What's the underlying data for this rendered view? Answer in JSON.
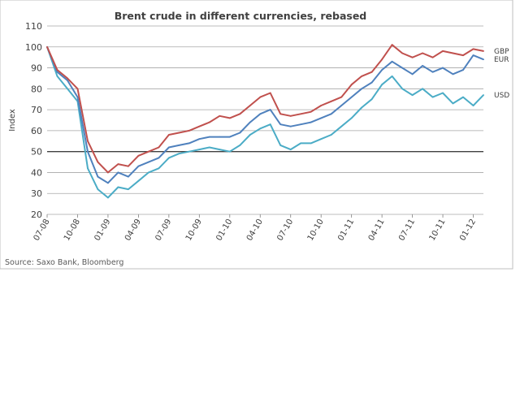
{
  "chart_data": {
    "type": "line",
    "title": "Brent crude in different currencies, rebased",
    "ylabel": "Index",
    "xlabel": "",
    "source": "Source: Saxo Bank, Bloomberg",
    "ylim": [
      20,
      110
    ],
    "yticks": [
      20,
      30,
      40,
      50,
      60,
      70,
      80,
      90,
      100,
      110
    ],
    "reference_line": 50,
    "xlim": [
      0,
      43
    ],
    "x_tick_labels": [
      "07-08",
      "10-08",
      "01-09",
      "04-09",
      "07-09",
      "10-09",
      "01-10",
      "04-10",
      "07-10",
      "10-10",
      "01-11",
      "04-11",
      "07-11",
      "10-11",
      "01-12"
    ],
    "x_tick_positions": [
      0,
      3,
      6,
      9,
      12,
      15,
      18,
      21,
      24,
      27,
      30,
      33,
      36,
      39,
      42
    ],
    "x": [
      0,
      1,
      2,
      3,
      4,
      5,
      6,
      7,
      8,
      9,
      10,
      11,
      12,
      13,
      14,
      15,
      16,
      17,
      18,
      19,
      20,
      21,
      22,
      23,
      24,
      25,
      26,
      27,
      28,
      29,
      30,
      31,
      32,
      33,
      34,
      35,
      36,
      37,
      38,
      39,
      40,
      41,
      42,
      43
    ],
    "series": [
      {
        "name": "GBP",
        "color": "#c0504d",
        "values": [
          100,
          89,
          85,
          80,
          55,
          45,
          40,
          44,
          43,
          48,
          50,
          52,
          58,
          59,
          60,
          62,
          64,
          67,
          66,
          68,
          72,
          76,
          78,
          68,
          67,
          68,
          69,
          72,
          74,
          76,
          82,
          86,
          88,
          94,
          101,
          97,
          95,
          97,
          95,
          98,
          97,
          96,
          99,
          98
        ]
      },
      {
        "name": "EUR",
        "color": "#4f81bd",
        "values": [
          100,
          88,
          84,
          76,
          50,
          38,
          35,
          40,
          38,
          43,
          45,
          47,
          52,
          53,
          54,
          56,
          57,
          57,
          57,
          59,
          64,
          68,
          70,
          63,
          62,
          63,
          64,
          66,
          68,
          72,
          76,
          80,
          83,
          89,
          93,
          90,
          87,
          91,
          88,
          90,
          87,
          89,
          96,
          94
        ]
      },
      {
        "name": "USD",
        "color": "#4bacc6",
        "values": [
          100,
          86,
          80,
          74,
          42,
          32,
          28,
          33,
          32,
          36,
          40,
          42,
          47,
          49,
          50,
          51,
          52,
          51,
          50,
          53,
          58,
          61,
          63,
          53,
          51,
          54,
          54,
          56,
          58,
          62,
          66,
          71,
          75,
          82,
          86,
          80,
          77,
          80,
          76,
          78,
          73,
          76,
          72,
          77
        ]
      }
    ]
  }
}
